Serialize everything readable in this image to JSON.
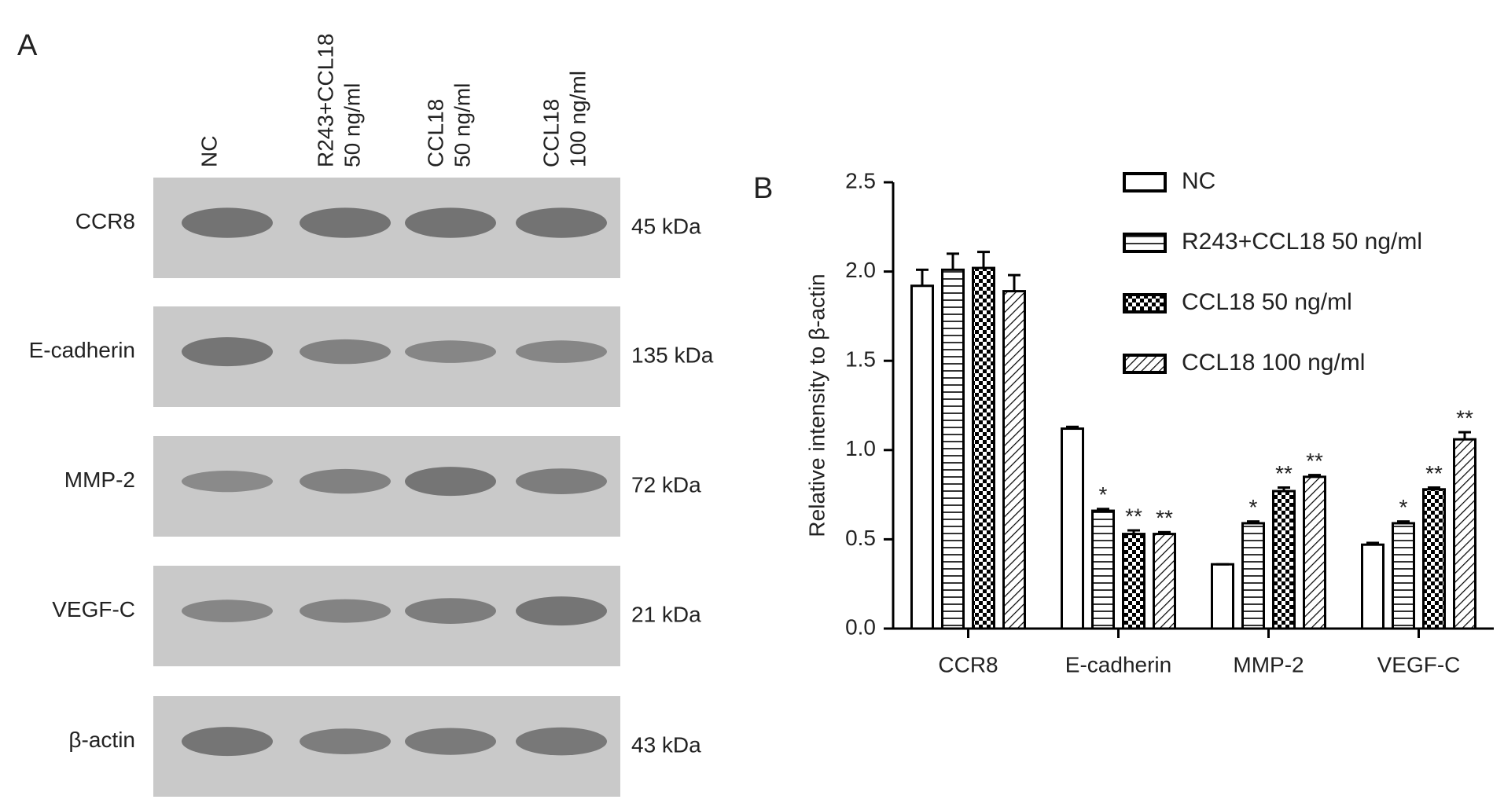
{
  "panel_a": {
    "label": "A",
    "lanes": [
      [
        "NC"
      ],
      [
        "R243+CCL18",
        "50 ng/ml"
      ],
      [
        "CCL18",
        "50 ng/ml"
      ],
      [
        "CCL18",
        "100 ng/ml"
      ]
    ],
    "rows": [
      {
        "name": "CCR8",
        "size": "45 kDa"
      },
      {
        "name": "E-cadherin",
        "size": "135 kDa"
      },
      {
        "name": "MMP-2",
        "size": "72 kDa"
      },
      {
        "name": "VEGF-C",
        "size": "21 kDa"
      },
      {
        "name": "β-actin",
        "size": "43 kDa"
      }
    ]
  },
  "chart_data": {
    "type": "bar",
    "panel_label": "B",
    "y_label": "Relative intensity to β-actin",
    "categories": [
      "CCR8",
      "E-cadherin",
      "MMP-2",
      "VEGF-C"
    ],
    "series": [
      {
        "name": "NC",
        "color": "#000000",
        "pattern": "open",
        "values": [
          1.92,
          1.12,
          0.36,
          0.47
        ],
        "errors": [
          0.09,
          0.01,
          0.0,
          0.01
        ],
        "annotations": [
          null,
          null,
          null,
          null
        ]
      },
      {
        "name": "R243+CCL18 50 ng/ml",
        "color": "#000000",
        "pattern": "horizontal",
        "values": [
          2.01,
          0.66,
          0.59,
          0.59
        ],
        "errors": [
          0.09,
          0.01,
          0.01,
          0.01
        ],
        "annotations": [
          null,
          "*",
          "*",
          "*"
        ]
      },
      {
        "name": "CCL18 50 ng/ml",
        "color": "#000000",
        "pattern": "checker",
        "values": [
          2.02,
          0.53,
          0.77,
          0.78
        ],
        "errors": [
          0.09,
          0.02,
          0.02,
          0.01
        ],
        "annotations": [
          null,
          "**",
          "**",
          "**"
        ]
      },
      {
        "name": "CCL18 100 ng/ml",
        "color": "#000000",
        "pattern": "diagonal",
        "values": [
          1.89,
          0.53,
          0.85,
          1.06
        ],
        "errors": [
          0.09,
          0.01,
          0.01,
          0.04
        ],
        "annotations": [
          null,
          "**",
          "**",
          "**"
        ]
      }
    ],
    "ylim": [
      0,
      2.5
    ],
    "yticks": [
      {
        "value": 0,
        "label": "0.0"
      },
      0.5,
      {
        "value": 1,
        "label": "1.0"
      },
      1.5,
      {
        "value": 2,
        "label": "2.0"
      },
      2.5
    ],
    "legend": "top-right"
  }
}
